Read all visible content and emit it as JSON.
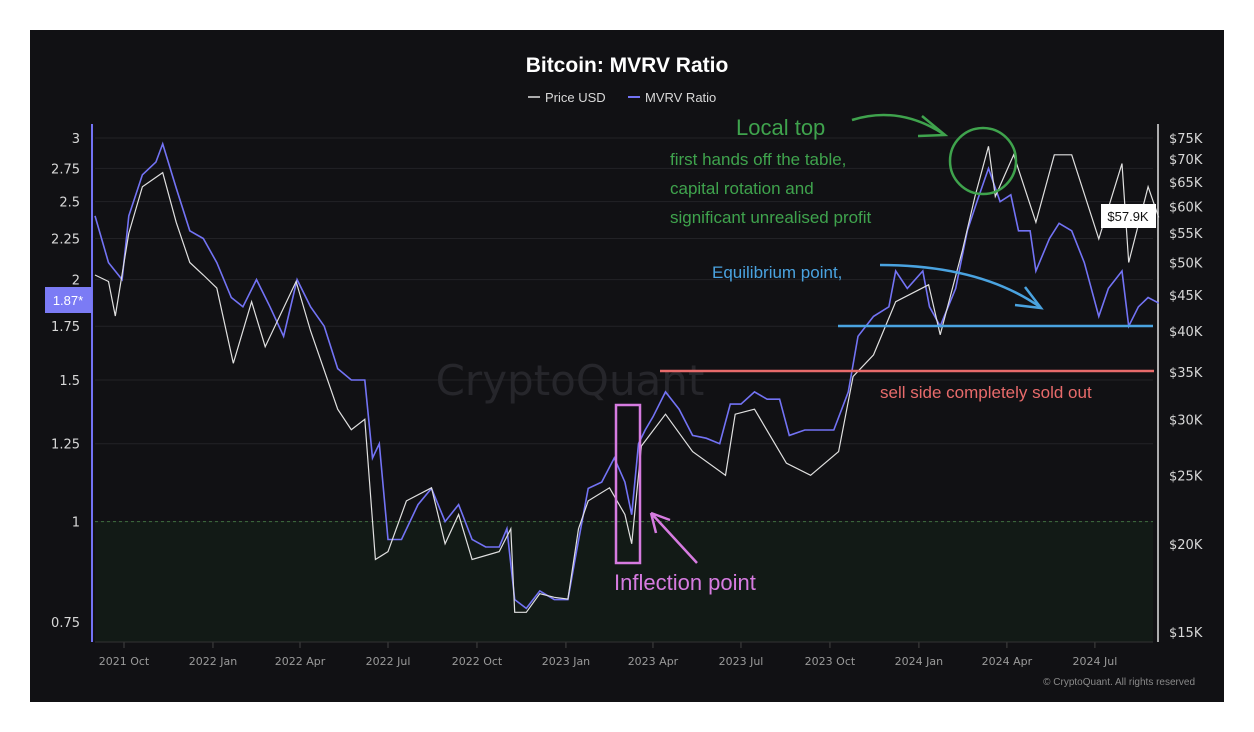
{
  "chart_data": {
    "type": "line",
    "title": "Bitcoin: MVRV Ratio",
    "legend": {
      "placement": "top-center",
      "entries": [
        "Price USD",
        "MVRV Ratio"
      ]
    },
    "left_axis": {
      "scale": "log",
      "range": [
        0.7,
        3.1
      ],
      "ticks": [
        3,
        2.75,
        2.5,
        2.25,
        2,
        1.75,
        1.5,
        1.25,
        1,
        0.75
      ],
      "tick_labels": [
        "3",
        "2.75",
        "2.5",
        "2.25",
        "2",
        "1.75",
        "1.5",
        "1.25",
        "1",
        "0.75"
      ],
      "current_label": "1.87*"
    },
    "right_axis": {
      "scale": "log",
      "unit": "USD",
      "ticks": [
        75000,
        70000,
        65000,
        60000,
        55000,
        50000,
        45000,
        40000,
        35000,
        30000,
        25000,
        20000,
        15000
      ],
      "tick_labels": [
        "$75K",
        "$70K",
        "$65K",
        "$60K",
        "$55K",
        "$50K",
        "$45K",
        "$40K",
        "$35K",
        "$30K",
        "$25K",
        "$20K",
        "$15K"
      ],
      "current_label": "$57.9K"
    },
    "x_axis": {
      "range": [
        "2021-09-01",
        "2024-09-05"
      ],
      "ticks": [
        "2021-10-01",
        "2022-01-01",
        "2022-04-01",
        "2022-07-01",
        "2022-10-01",
        "2023-01-01",
        "2023-04-01",
        "2023-07-01",
        "2023-10-01",
        "2024-01-01",
        "2024-04-01",
        "2024-07-01"
      ],
      "tick_labels": [
        "2021 Oct",
        "2022 Jan",
        "2022 Apr",
        "2022 Jul",
        "2022 Oct",
        "2023 Jan",
        "2023 Apr",
        "2023 Jul",
        "2023 Oct",
        "2024 Jan",
        "2024 Apr",
        "2024 Jul"
      ]
    },
    "grid": true,
    "reference_line": {
      "value": 1,
      "style": "dashed",
      "shaded_below": true
    },
    "series": [
      {
        "name": "Price USD",
        "axis": "right",
        "color": "#e0e0e0",
        "points": [
          [
            "2021-09-01",
            48000
          ],
          [
            "2021-09-15",
            47000
          ],
          [
            "2021-09-22",
            42000
          ],
          [
            "2021-10-06",
            55000
          ],
          [
            "2021-10-20",
            64000
          ],
          [
            "2021-11-10",
            67000
          ],
          [
            "2021-11-24",
            57000
          ],
          [
            "2021-12-08",
            50000
          ],
          [
            "2021-12-22",
            48000
          ],
          [
            "2022-01-05",
            46000
          ],
          [
            "2022-01-22",
            36000
          ],
          [
            "2022-02-10",
            44000
          ],
          [
            "2022-02-24",
            38000
          ],
          [
            "2022-03-28",
            47000
          ],
          [
            "2022-04-12",
            40000
          ],
          [
            "2022-05-10",
            31000
          ],
          [
            "2022-05-24",
            29000
          ],
          [
            "2022-06-07",
            30000
          ],
          [
            "2022-06-18",
            19000
          ],
          [
            "2022-07-01",
            19500
          ],
          [
            "2022-07-20",
            23000
          ],
          [
            "2022-08-15",
            24000
          ],
          [
            "2022-08-29",
            20000
          ],
          [
            "2022-09-12",
            22000
          ],
          [
            "2022-09-26",
            19000
          ],
          [
            "2022-10-24",
            19500
          ],
          [
            "2022-11-05",
            21000
          ],
          [
            "2022-11-09",
            16000
          ],
          [
            "2022-11-21",
            16000
          ],
          [
            "2022-12-05",
            17000
          ],
          [
            "2022-12-20",
            16800
          ],
          [
            "2023-01-03",
            16700
          ],
          [
            "2023-01-14",
            21000
          ],
          [
            "2023-01-24",
            23000
          ],
          [
            "2023-02-15",
            24000
          ],
          [
            "2023-03-03",
            22000
          ],
          [
            "2023-03-10",
            20000
          ],
          [
            "2023-03-20",
            27500
          ],
          [
            "2023-04-14",
            30500
          ],
          [
            "2023-05-12",
            27000
          ],
          [
            "2023-06-15",
            25000
          ],
          [
            "2023-06-25",
            30500
          ],
          [
            "2023-07-15",
            31000
          ],
          [
            "2023-08-17",
            26000
          ],
          [
            "2023-09-11",
            25000
          ],
          [
            "2023-10-10",
            27000
          ],
          [
            "2023-10-25",
            34500
          ],
          [
            "2023-11-15",
            37000
          ],
          [
            "2023-12-08",
            44000
          ],
          [
            "2024-01-11",
            46500
          ],
          [
            "2024-01-23",
            39500
          ],
          [
            "2024-02-15",
            52000
          ],
          [
            "2024-02-28",
            62000
          ],
          [
            "2024-03-13",
            73000
          ],
          [
            "2024-03-20",
            62000
          ],
          [
            "2024-04-08",
            71000
          ],
          [
            "2024-05-01",
            57000
          ],
          [
            "2024-05-20",
            71000
          ],
          [
            "2024-06-07",
            71000
          ],
          [
            "2024-07-05",
            54000
          ],
          [
            "2024-07-29",
            69000
          ],
          [
            "2024-08-05",
            50000
          ],
          [
            "2024-08-25",
            64000
          ],
          [
            "2024-09-05",
            57900
          ]
        ]
      },
      {
        "name": "MVRV Ratio",
        "axis": "left",
        "color": "#7373f5",
        "points": [
          [
            "2021-09-01",
            2.4
          ],
          [
            "2021-09-15",
            2.1
          ],
          [
            "2021-09-29",
            2.0
          ],
          [
            "2021-10-06",
            2.4
          ],
          [
            "2021-10-20",
            2.7
          ],
          [
            "2021-11-03",
            2.8
          ],
          [
            "2021-11-10",
            2.95
          ],
          [
            "2021-11-24",
            2.6
          ],
          [
            "2021-12-08",
            2.3
          ],
          [
            "2021-12-22",
            2.25
          ],
          [
            "2022-01-05",
            2.1
          ],
          [
            "2022-01-20",
            1.9
          ],
          [
            "2022-02-01",
            1.85
          ],
          [
            "2022-02-15",
            2.0
          ],
          [
            "2022-03-01",
            1.85
          ],
          [
            "2022-03-15",
            1.7
          ],
          [
            "2022-03-29",
            2.0
          ],
          [
            "2022-04-12",
            1.85
          ],
          [
            "2022-04-26",
            1.75
          ],
          [
            "2022-05-10",
            1.55
          ],
          [
            "2022-05-24",
            1.5
          ],
          [
            "2022-06-07",
            1.5
          ],
          [
            "2022-06-15",
            1.2
          ],
          [
            "2022-06-22",
            1.25
          ],
          [
            "2022-07-01",
            0.95
          ],
          [
            "2022-07-15",
            0.95
          ],
          [
            "2022-08-01",
            1.05
          ],
          [
            "2022-08-15",
            1.1
          ],
          [
            "2022-08-29",
            1.0
          ],
          [
            "2022-09-12",
            1.05
          ],
          [
            "2022-09-26",
            0.95
          ],
          [
            "2022-10-10",
            0.93
          ],
          [
            "2022-10-24",
            0.93
          ],
          [
            "2022-11-01",
            0.98
          ],
          [
            "2022-11-09",
            0.8
          ],
          [
            "2022-11-21",
            0.78
          ],
          [
            "2022-12-05",
            0.82
          ],
          [
            "2022-12-20",
            0.8
          ],
          [
            "2023-01-03",
            0.8
          ],
          [
            "2023-01-12",
            0.92
          ],
          [
            "2023-01-24",
            1.1
          ],
          [
            "2023-02-07",
            1.12
          ],
          [
            "2023-02-20",
            1.2
          ],
          [
            "2023-03-03",
            1.12
          ],
          [
            "2023-03-10",
            1.02
          ],
          [
            "2023-03-17",
            1.25
          ],
          [
            "2023-03-24",
            1.3
          ],
          [
            "2023-04-01",
            1.35
          ],
          [
            "2023-04-14",
            1.45
          ],
          [
            "2023-04-28",
            1.38
          ],
          [
            "2023-05-12",
            1.28
          ],
          [
            "2023-05-26",
            1.27
          ],
          [
            "2023-06-09",
            1.25
          ],
          [
            "2023-06-20",
            1.4
          ],
          [
            "2023-07-01",
            1.4
          ],
          [
            "2023-07-15",
            1.45
          ],
          [
            "2023-07-28",
            1.42
          ],
          [
            "2023-08-10",
            1.42
          ],
          [
            "2023-08-20",
            1.28
          ],
          [
            "2023-09-05",
            1.3
          ],
          [
            "2023-09-20",
            1.3
          ],
          [
            "2023-10-05",
            1.3
          ],
          [
            "2023-10-20",
            1.45
          ],
          [
            "2023-10-30",
            1.7
          ],
          [
            "2023-11-15",
            1.8
          ],
          [
            "2023-12-01",
            1.85
          ],
          [
            "2023-12-08",
            2.05
          ],
          [
            "2023-12-20",
            1.95
          ],
          [
            "2024-01-05",
            2.05
          ],
          [
            "2024-01-12",
            1.85
          ],
          [
            "2024-01-23",
            1.75
          ],
          [
            "2024-02-08",
            1.95
          ],
          [
            "2024-02-20",
            2.3
          ],
          [
            "2024-03-01",
            2.5
          ],
          [
            "2024-03-13",
            2.75
          ],
          [
            "2024-03-25",
            2.5
          ],
          [
            "2024-04-05",
            2.55
          ],
          [
            "2024-04-13",
            2.3
          ],
          [
            "2024-04-25",
            2.3
          ],
          [
            "2024-05-01",
            2.05
          ],
          [
            "2024-05-15",
            2.25
          ],
          [
            "2024-05-25",
            2.35
          ],
          [
            "2024-06-07",
            2.3
          ],
          [
            "2024-06-20",
            2.1
          ],
          [
            "2024-07-05",
            1.8
          ],
          [
            "2024-07-15",
            1.95
          ],
          [
            "2024-07-29",
            2.05
          ],
          [
            "2024-08-05",
            1.75
          ],
          [
            "2024-08-15",
            1.85
          ],
          [
            "2024-08-25",
            1.9
          ],
          [
            "2024-09-05",
            1.87
          ]
        ]
      }
    ],
    "annotations": {
      "local_top": {
        "label": "Local top",
        "color": "#3fa34d",
        "note_lines": [
          "first hands off the table,",
          "capital rotation and",
          "significant unrealised profit"
        ]
      },
      "equilibrium": {
        "label": "Equilibrium point,",
        "color": "#4aa3e0",
        "level_usd": 40500
      },
      "sell_side": {
        "label": "sell side completely sold out",
        "color": "#e86b6b",
        "level_usd": 35500
      },
      "inflection": {
        "label": "Inflection point",
        "color": "#d67be0"
      }
    },
    "watermark": "CryptoQuant",
    "footer": "© CryptoQuant. All rights reserved"
  }
}
